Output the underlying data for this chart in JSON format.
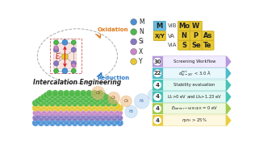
{
  "bg_color": "#ffffff",
  "legend_items": [
    {
      "label": "M",
      "color": "#4a90d4"
    },
    {
      "label": "N",
      "color": "#50b848"
    },
    {
      "label": "Si",
      "color": "#8878c0"
    },
    {
      "label": "X",
      "color": "#c888c8"
    },
    {
      "label": "Y",
      "color": "#e8c830"
    }
  ],
  "M_box_color": "#6abcdc",
  "element_color": "#e8c830",
  "workflow_colors": [
    "#b090d8",
    "#40b8c8",
    "#38bfb0",
    "#38bfb0",
    "#98c840",
    "#e8c830"
  ],
  "workflow_box_colors": [
    "#f0ecff",
    "#e8f8fc",
    "#e0f8f4",
    "#e0f8f4",
    "#f0f8e0",
    "#fef8e0"
  ],
  "workflow_numbers": [
    "30",
    "22",
    "4",
    "4",
    "4",
    "4"
  ],
  "workflow_texts": [
    "Screening Workflow",
    "$d_{Si-X/Y}^{out}$ < 3.0 Å",
    "Stability evaluation",
    "$U_v$>0 eV and $U_b$>1.23 eV",
    "$E_{barrier-HER/OER}$ = 0 eV",
    "$\\eta_{STH}$ > 25%"
  ],
  "oxidation_color": "#e07818",
  "reduction_color": "#2878c8",
  "atom_M_color": "#4a90d4",
  "atom_N_color": "#50b848",
  "atom_Si_color": "#8878c0",
  "atom_X_color": "#c888c8",
  "atom_Y_color": "#e8c830",
  "layer_colors_3d": [
    "#4a90d4",
    "#8878c0",
    "#c888c8",
    "#e8c830",
    "#50b848"
  ],
  "bubble_O2_color": "#f0b878",
  "bubble_H2_color": "#a8d0f0"
}
